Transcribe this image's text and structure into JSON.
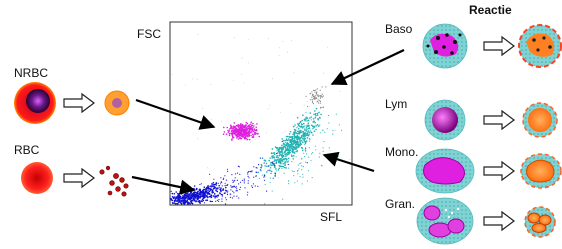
{
  "plot": {
    "y_axis_label": "FSC",
    "x_axis_label": "SFL"
  },
  "left_cells": [
    {
      "label": "NRBC"
    },
    {
      "label": "RBC"
    }
  ],
  "right_header": "Reactie",
  "right_cells": [
    {
      "label": "Baso"
    },
    {
      "label": "Lym"
    },
    {
      "label": "Mono."
    },
    {
      "label": "Gran."
    }
  ]
}
